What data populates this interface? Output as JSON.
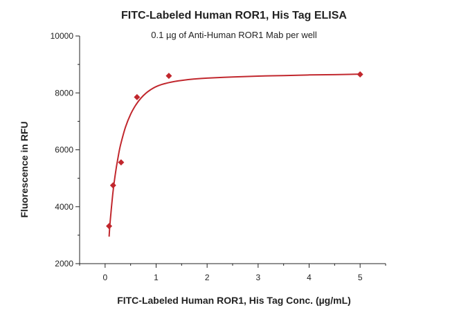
{
  "chart_data": {
    "type": "scatter",
    "title": "FITC-Labeled Human ROR1, His Tag ELISA",
    "subtitle": "0.1 µg of Anti-Human ROR1 Mab per well",
    "xlabel": "FITC-Labeled Human ROR1, His Tag Conc. (µg/mL)",
    "ylabel": "Fluorescence in RFU",
    "xlim": [
      -0.5,
      5.5
    ],
    "ylim": [
      2000,
      10000
    ],
    "x_ticks": [
      0,
      1,
      2,
      3,
      4,
      5
    ],
    "x_tick_labels": [
      "0",
      "1",
      "2",
      "3",
      "4",
      "5"
    ],
    "y_ticks": [
      2000,
      4000,
      6000,
      8000,
      10000
    ],
    "y_tick_labels": [
      "2000",
      "4000",
      "6000",
      "8000",
      "10000"
    ],
    "grid": false,
    "series": [
      {
        "x": [
          0.078,
          0.156,
          0.313,
          0.625,
          1.25,
          5
        ],
        "y": [
          3320,
          4750,
          5560,
          7850,
          8600,
          8650
        ],
        "marker": "diamond",
        "color": "#c1272d"
      }
    ],
    "fit_curve": {
      "type": "four-parameter logistic",
      "color": "#c1272d",
      "x": [
        0.078,
        0.1,
        0.15,
        0.2,
        0.25,
        0.3,
        0.4,
        0.5,
        0.6,
        0.7,
        0.8,
        0.9,
        1.0,
        1.1,
        1.2,
        1.3,
        1.5,
        1.75,
        2.0,
        2.5,
        3.0,
        3.5,
        4.0,
        4.5,
        5.0
      ],
      "y": [
        2950,
        3500,
        4450,
        5150,
        5700,
        6150,
        6800,
        7250,
        7570,
        7810,
        7990,
        8120,
        8220,
        8290,
        8340,
        8380,
        8440,
        8490,
        8520,
        8560,
        8590,
        8610,
        8630,
        8640,
        8660
      ]
    }
  }
}
